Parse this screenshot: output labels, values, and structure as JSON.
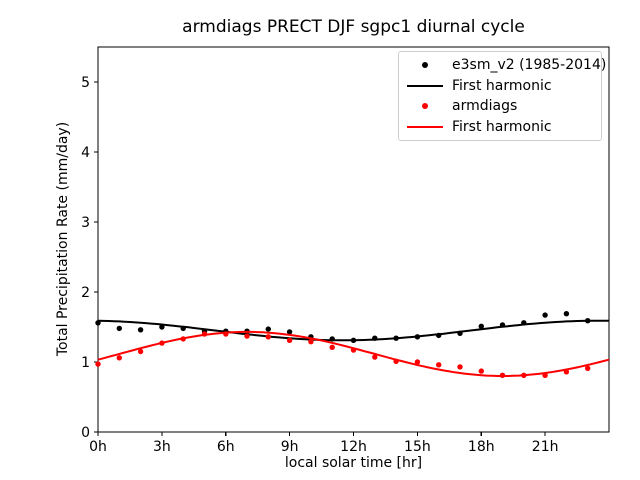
{
  "figure": {
    "background": "#ffffff",
    "frame_color": "#000000"
  },
  "chart_data": {
    "type": "scatter",
    "title": "armdiags PRECT DJF sgpc1 diurnal cycle",
    "xlabel": "local solar time [hr]",
    "ylabel": "Total Precipitation Rate (mm/day)",
    "xlim": [
      0,
      24
    ],
    "ylim": [
      0,
      5.5
    ],
    "grid": false,
    "x_ticks": {
      "values": [
        0,
        3,
        6,
        9,
        12,
        15,
        18,
        21
      ],
      "labels": [
        "0h",
        "3h",
        "6h",
        "9h",
        "12h",
        "15h",
        "18h",
        "21h"
      ]
    },
    "y_ticks": {
      "values": [
        0,
        1,
        2,
        3,
        4,
        5
      ],
      "labels": [
        "0",
        "1",
        "2",
        "3",
        "4",
        "5"
      ]
    },
    "hours": [
      0,
      1,
      2,
      3,
      4,
      5,
      6,
      7,
      8,
      9,
      10,
      11,
      12,
      13,
      14,
      15,
      16,
      17,
      18,
      19,
      20,
      21,
      22,
      23
    ],
    "series": [
      {
        "name": "e3sm_v2 (1985-2014)",
        "type": "scatter",
        "color": "#000000",
        "values": [
          1.56,
          1.48,
          1.46,
          1.5,
          1.48,
          1.44,
          1.44,
          1.44,
          1.47,
          1.43,
          1.36,
          1.33,
          1.31,
          1.34,
          1.34,
          1.36,
          1.38,
          1.41,
          1.51,
          1.53,
          1.56,
          1.67,
          1.69,
          1.59
        ]
      },
      {
        "name": "First harmonic",
        "type": "line",
        "color": "#000000",
        "harmonic": {
          "mean": 1.45,
          "amplitude": 0.14,
          "peak_hour": 23.5
        }
      },
      {
        "name": "armdiags",
        "type": "scatter",
        "color": "#ff0000",
        "values": [
          0.97,
          1.06,
          1.15,
          1.27,
          1.33,
          1.4,
          1.4,
          1.37,
          1.36,
          1.31,
          1.29,
          1.21,
          1.17,
          1.07,
          1.01,
          1.0,
          0.96,
          0.93,
          0.87,
          0.81,
          0.81,
          0.81,
          0.86,
          0.91
        ]
      },
      {
        "name": "First harmonic",
        "type": "line",
        "color": "#ff0000",
        "harmonic": {
          "mean": 1.115,
          "amplitude": 0.315,
          "peak_hour": 7.0
        }
      }
    ],
    "legend": {
      "position": "upper right",
      "entries": [
        {
          "label": "e3sm_v2 (1985-2014)",
          "marker": "dot",
          "color": "#000000"
        },
        {
          "label": "First harmonic",
          "marker": "line",
          "color": "#000000"
        },
        {
          "label": "armdiags",
          "marker": "dot",
          "color": "#ff0000"
        },
        {
          "label": "First harmonic",
          "marker": "line",
          "color": "#ff0000"
        }
      ]
    }
  }
}
